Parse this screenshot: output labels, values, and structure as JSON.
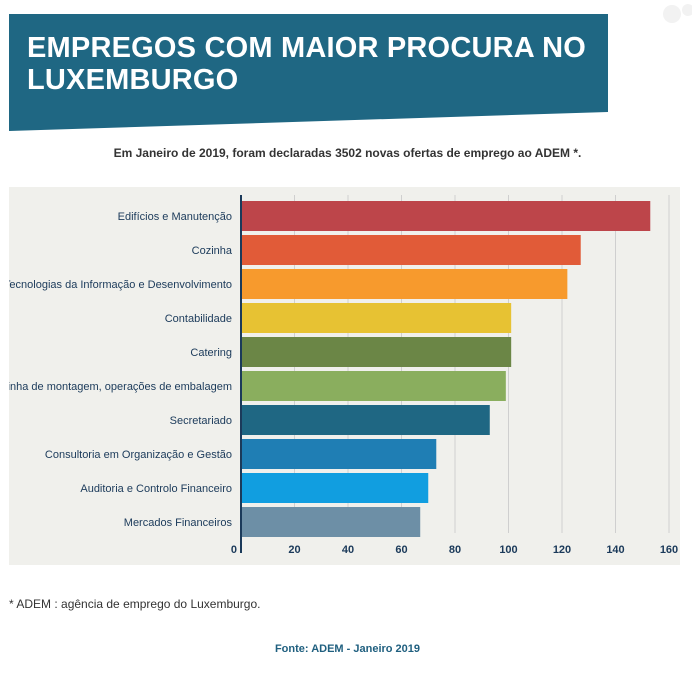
{
  "header": {
    "title": "EMPREGOS COM MAIOR PROCURA NO LUXEMBURGO",
    "banner_color": "#1f6783"
  },
  "subtitle": "Em Janeiro de 2019, foram declaradas 3502 novas ofertas de emprego ao ADEM *.",
  "chart_data": {
    "type": "bar",
    "orientation": "horizontal",
    "categories": [
      "Edifícios e Manutenção",
      "Cozinha",
      "Tecnologias da Informação e Desenvolvimento",
      "Contabilidade",
      "Catering",
      "Linha de montagem, operações de embalagem",
      "Secretariado",
      "Consultoria em Organização e Gestão",
      "Auditoria e Controlo Financeiro",
      "Mercados Financeiros"
    ],
    "values": [
      153,
      127,
      122,
      101,
      101,
      99,
      93,
      73,
      70,
      67
    ],
    "colors": [
      "#bd454a",
      "#e15b38",
      "#f79a2d",
      "#e7c233",
      "#6b8646",
      "#8aae5e",
      "#1f6783",
      "#1f7eb4",
      "#119ee0",
      "#6d8fa6"
    ],
    "xticks": [
      0,
      20,
      40,
      60,
      80,
      100,
      120,
      140,
      160
    ],
    "xlim": [
      0,
      160
    ],
    "grid": true
  },
  "footnote": "* ADEM : agência de emprego do Luxemburgo.",
  "source": "Fonte: ADEM - Janeiro 2019"
}
